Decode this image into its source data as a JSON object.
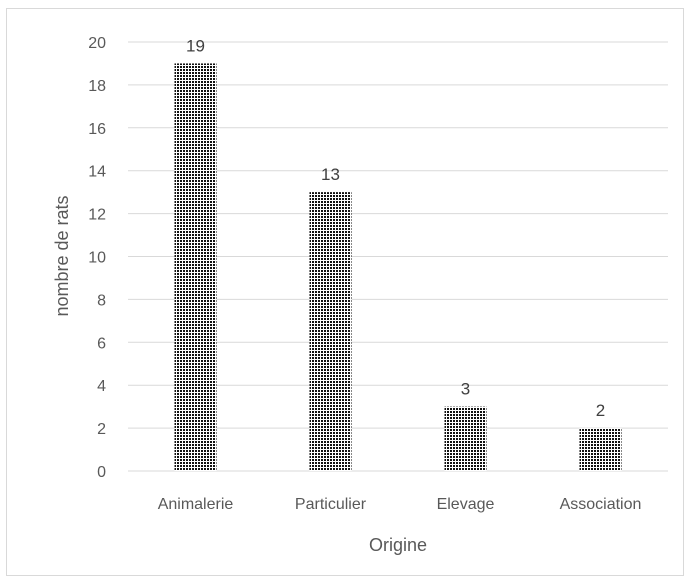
{
  "chart_data": {
    "type": "bar",
    "title": "",
    "xlabel": "Origine",
    "ylabel": "nombre de rats",
    "categories": [
      "Animalerie",
      "Particulier",
      "Elevage",
      "Association"
    ],
    "values": [
      19,
      13,
      3,
      2
    ],
    "data_labels": [
      "19",
      "13",
      "3",
      "2"
    ],
    "ylim": [
      0,
      20
    ],
    "yticks": [
      "0",
      "2",
      "4",
      "6",
      "8",
      "10",
      "12",
      "14",
      "16",
      "18",
      "20"
    ],
    "grid": true,
    "legend": "none",
    "bar_color": "#111111",
    "bar_pattern": "dotted",
    "gridline_color": "#d9d9d9"
  }
}
